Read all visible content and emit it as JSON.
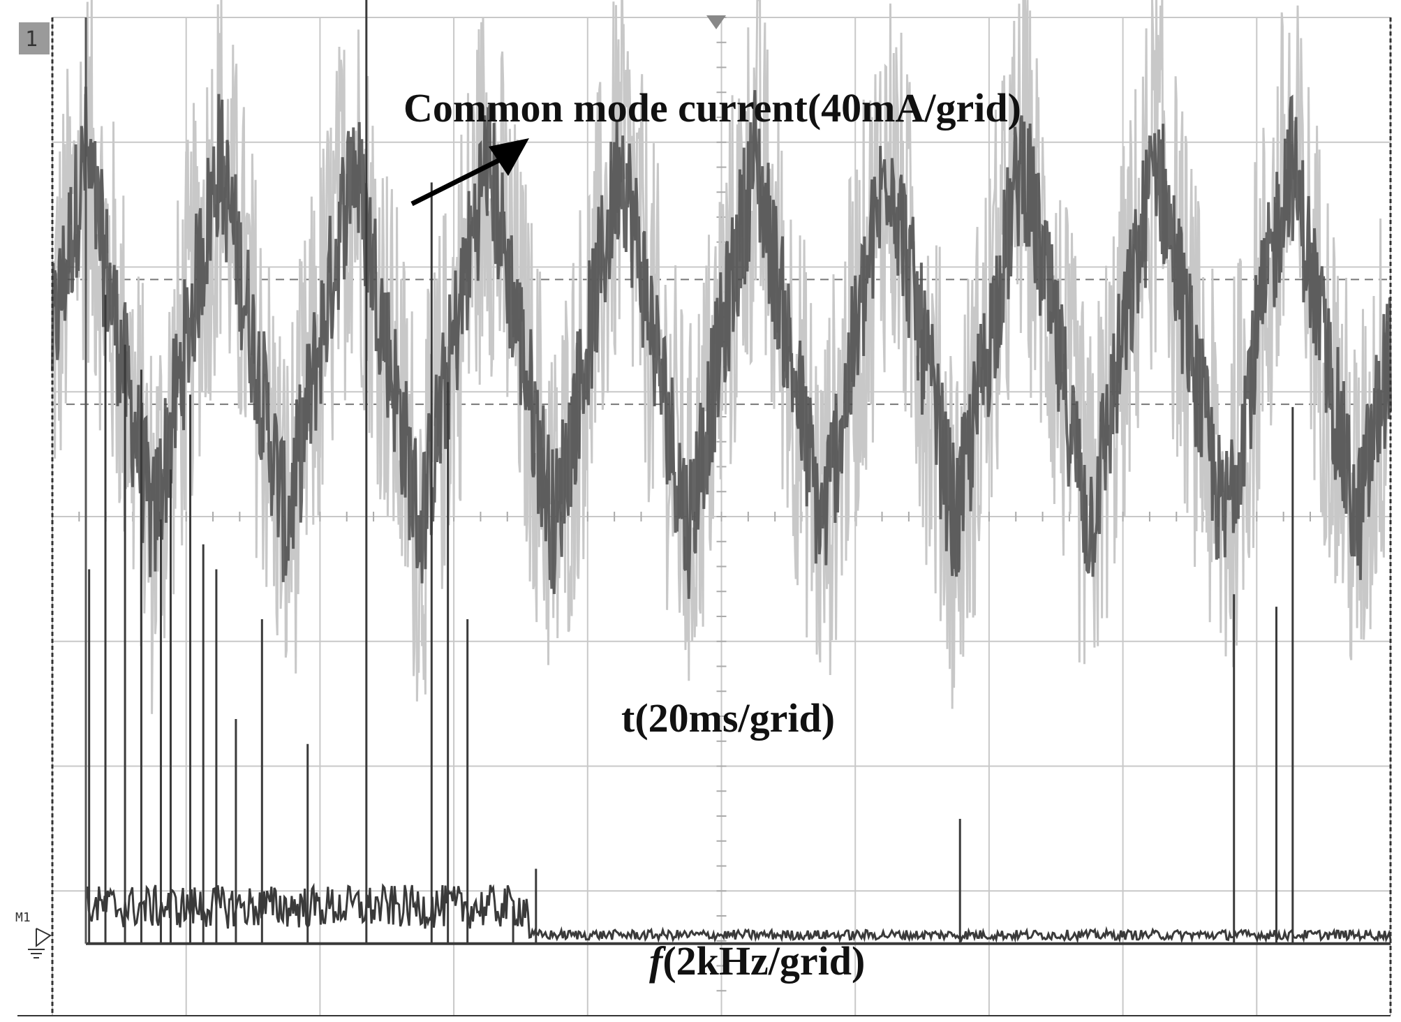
{
  "chart_data": [
    {
      "type": "line",
      "title": "",
      "annotation_current": "Common mode current(40mA/grid)",
      "annotation_time": "t(20ms/grid)",
      "ylabel": "",
      "xlabel": "",
      "units": {
        "y_per_div": "40mA/grid",
        "x_per_div": "20ms/grid"
      },
      "xlim_ms": [
        0,
        200
      ],
      "grid": {
        "divisions_x": 10,
        "divisions_y": 8,
        "on": true
      },
      "series": [
        {
          "name": "",
          "description_values": "noisy triangular wave, 10 periods over the screen",
          "period_ms": 20,
          "offset_mA": 0,
          "amplitude_mA": 60,
          "noise_mA": 40,
          "phase_ms": 5
        }
      ],
      "reference_levels_mA": [
        -20,
        20
      ],
      "colors": {
        "trace": "#4a4a4a",
        "trace_halo": "#c8c8c8",
        "grid": "#c8c8c8",
        "reference": "#777777"
      }
    },
    {
      "type": "bar",
      "annotation_freq_italic": "f",
      "annotation_freq_rest": "(2kHz/grid)",
      "units": {
        "x_per_div": "2kHz/grid"
      },
      "xlim_kHz": [
        0,
        20
      ],
      "marker_label": "M1",
      "frequencies_kHz": [
        0.05,
        0.3,
        0.6,
        0.85,
        1.15,
        1.3,
        1.6,
        1.8,
        2.0,
        2.3,
        2.7,
        3.4,
        4.3,
        5.3,
        5.55,
        5.85,
        6.55,
        6.9,
        13.4,
        17.6,
        18.25,
        18.5
      ],
      "magnitudes_div": [
        3.0,
        5.2,
        4.8,
        4.6,
        3.4,
        3.8,
        4.4,
        3.2,
        3.0,
        1.8,
        2.6,
        1.6,
        7.6,
        6.1,
        4.5,
        2.6,
        0.3,
        0.6,
        1.0,
        2.8,
        2.7,
        4.3
      ],
      "colors": {
        "spectrum": "#3a3a3a"
      }
    }
  ],
  "screen": {
    "trigger_label": "1"
  }
}
